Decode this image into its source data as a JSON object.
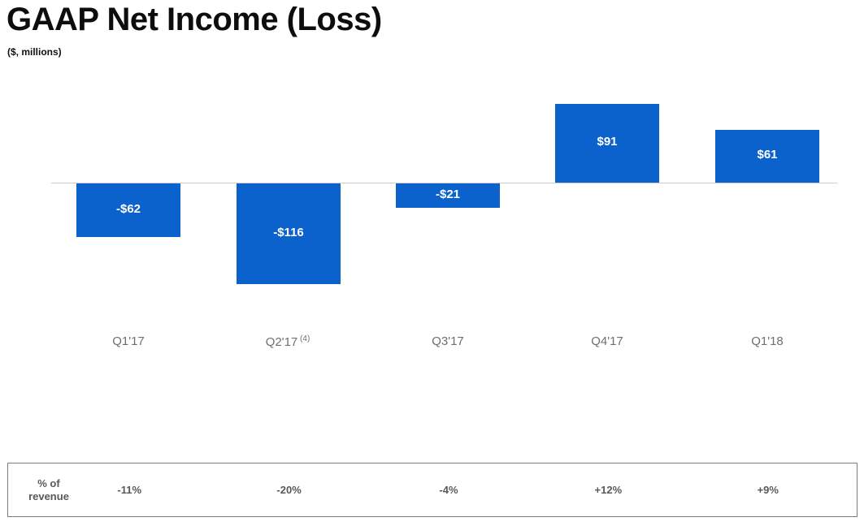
{
  "header": {
    "title": "GAAP Net Income (Loss)",
    "subtitle": "($, millions)"
  },
  "chart_data": {
    "type": "bar",
    "title": "GAAP Net Income (Loss)",
    "unit_label": "$, millions",
    "categories": [
      "Q1'17",
      "Q2'17",
      "Q3'17",
      "Q4'17",
      "Q1'18"
    ],
    "category_footnotes": [
      "",
      "(4)",
      "",
      "",
      ""
    ],
    "values": [
      -62,
      -116,
      -21,
      91,
      61
    ],
    "value_labels": [
      "-$62",
      "-$116",
      "-$21",
      "$91",
      "$61"
    ],
    "ylim": [
      -130,
      105
    ],
    "grid": false,
    "legend": false,
    "bar_color": "#0b62cd",
    "baseline_color": "#cbcbcb",
    "value_label_color": "#ffffff",
    "axis_label_color": "#6f6f6f"
  },
  "revenue_table": {
    "row_label": "% of revenue",
    "values": [
      "-11%",
      "-20%",
      "-4%",
      "+12%",
      "+9%"
    ]
  }
}
